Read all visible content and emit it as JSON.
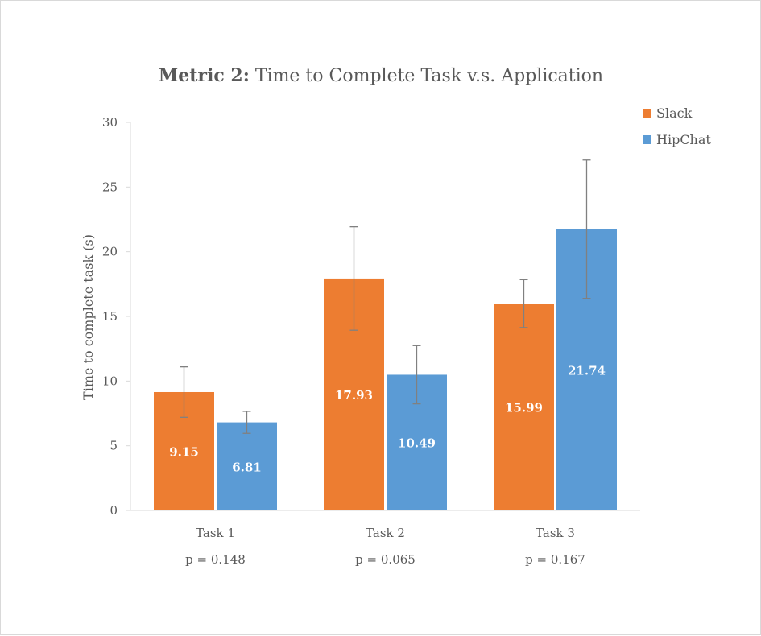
{
  "chart_data": {
    "type": "bar",
    "title_bold": "Metric 2:",
    "title_rest": " Time to Complete Task v.s. Application",
    "xlabel": "",
    "ylabel": "Time to complete task (s)",
    "ylim": [
      0,
      30
    ],
    "yticks": [
      0,
      5,
      10,
      15,
      20,
      25,
      30
    ],
    "grid": false,
    "legend_position": "top-right",
    "categories": [
      "Task 1",
      "Task 2",
      "Task 3"
    ],
    "sublabels": [
      "p = 0.148",
      "p = 0.065",
      "p = 0.167"
    ],
    "series": [
      {
        "name": "Slack",
        "color": "#ed7d31",
        "values": [
          9.15,
          17.93,
          15.99
        ],
        "errors": [
          1.95,
          4.0,
          1.85
        ]
      },
      {
        "name": "HipChat",
        "color": "#5b9bd5",
        "values": [
          6.81,
          10.49,
          21.74
        ],
        "errors": [
          0.85,
          2.25,
          5.35
        ]
      }
    ]
  }
}
